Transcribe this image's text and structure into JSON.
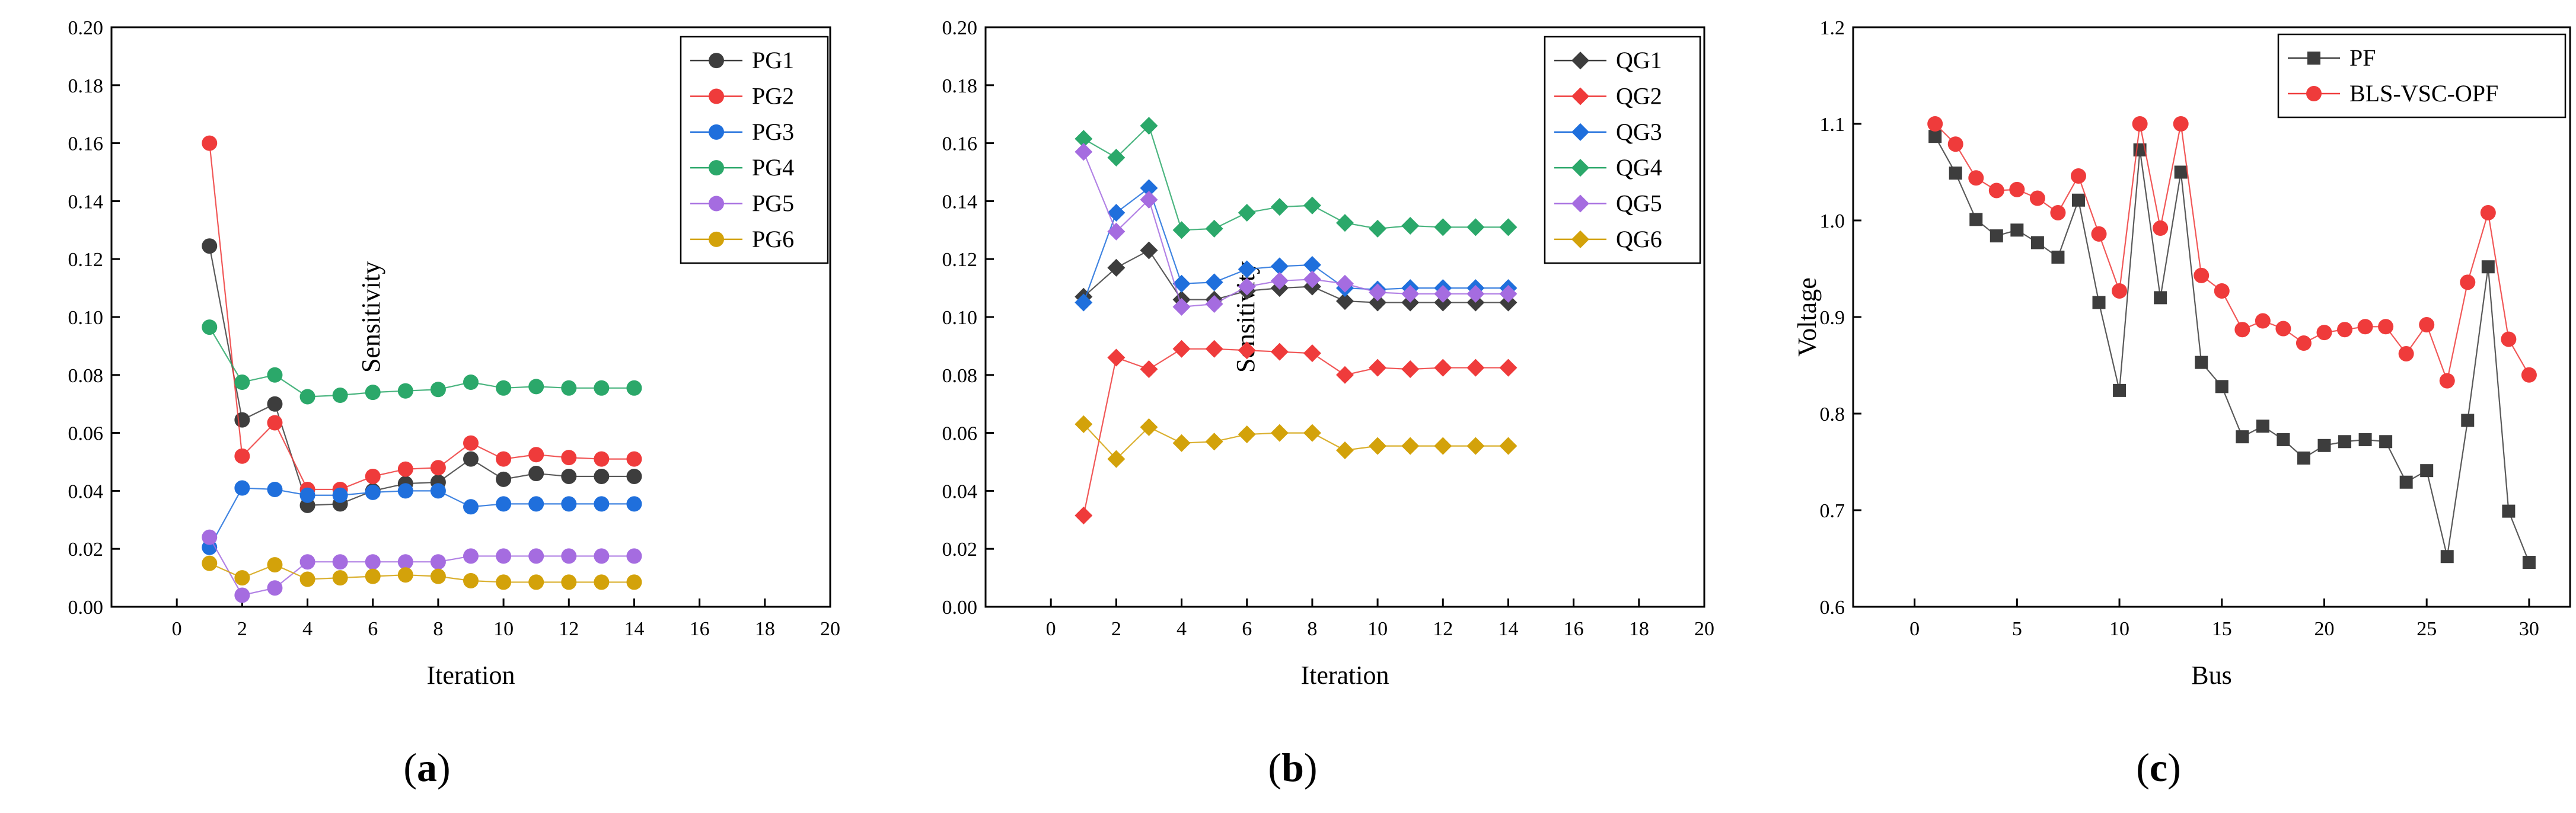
{
  "figure": {
    "panels": [
      "a",
      "b",
      "c"
    ]
  },
  "colors": {
    "PG1": "#3d3d3d",
    "PG2": "#ef3b3b",
    "PG3": "#1f6fdc",
    "PG4": "#2ba86a",
    "PG5": "#a56ce0",
    "PG6": "#d3a20a",
    "PF": "#3d3d3d",
    "BLS": "#ef3b3b"
  },
  "chart_data": [
    {
      "type": "line",
      "panel_label": "a",
      "xlabel": "Iteration",
      "ylabel": "Sensitivity",
      "xlim": [
        -2,
        20
      ],
      "ylim": [
        0,
        0.2
      ],
      "xticks": [
        "0",
        "2",
        "4",
        "6",
        "8",
        "10",
        "12",
        "14",
        "16",
        "18",
        "20"
      ],
      "yticks": [
        "0.00",
        "0.02",
        "0.04",
        "0.06",
        "0.08",
        "0.10",
        "0.12",
        "0.14",
        "0.16",
        "0.18",
        "0.20"
      ],
      "marker": "circle",
      "legend_position": "top-right",
      "x": [
        1,
        2,
        3,
        4,
        5,
        6,
        7,
        8,
        9,
        10,
        11,
        12,
        13,
        14
      ],
      "series": [
        {
          "name": "PG1",
          "color_key": "PG1",
          "values": [
            0.1245,
            0.0645,
            0.07,
            0.035,
            0.0355,
            0.04,
            0.0425,
            0.043,
            0.051,
            0.044,
            0.046,
            0.045,
            0.045,
            0.045
          ]
        },
        {
          "name": "PG2",
          "color_key": "PG2",
          "values": [
            0.16,
            0.052,
            0.0635,
            0.0405,
            0.0405,
            0.045,
            0.0475,
            0.048,
            0.0565,
            0.051,
            0.0525,
            0.0515,
            0.051,
            0.051
          ]
        },
        {
          "name": "PG3",
          "color_key": "PG3",
          "values": [
            0.0205,
            0.041,
            0.0405,
            0.0385,
            0.0385,
            0.0395,
            0.04,
            0.04,
            0.0345,
            0.0355,
            0.0355,
            0.0355,
            0.0355,
            0.0355
          ]
        },
        {
          "name": "PG4",
          "color_key": "PG4",
          "values": [
            0.0965,
            0.0775,
            0.08,
            0.0725,
            0.073,
            0.074,
            0.0745,
            0.075,
            0.0775,
            0.0755,
            0.076,
            0.0755,
            0.0755,
            0.0755
          ]
        },
        {
          "name": "PG5",
          "color_key": "PG5",
          "values": [
            0.024,
            0.004,
            0.0065,
            0.0155,
            0.0155,
            0.0155,
            0.0155,
            0.0155,
            0.0175,
            0.0175,
            0.0175,
            0.0175,
            0.0175,
            0.0175
          ]
        },
        {
          "name": "PG6",
          "color_key": "PG6",
          "values": [
            0.015,
            0.01,
            0.0145,
            0.0095,
            0.01,
            0.0105,
            0.011,
            0.0105,
            0.009,
            0.0085,
            0.0085,
            0.0085,
            0.0085,
            0.0085
          ]
        }
      ]
    },
    {
      "type": "line",
      "panel_label": "b",
      "xlabel": "Iteration",
      "ylabel": "Sensitivity",
      "xlim": [
        -2,
        20
      ],
      "ylim": [
        0,
        0.2
      ],
      "xticks": [
        "0",
        "2",
        "4",
        "6",
        "8",
        "10",
        "12",
        "14",
        "16",
        "18",
        "20"
      ],
      "yticks": [
        "0.00",
        "0.02",
        "0.04",
        "0.06",
        "0.08",
        "0.10",
        "0.12",
        "0.14",
        "0.16",
        "0.18",
        "0.20"
      ],
      "marker": "diamond",
      "legend_position": "top-right",
      "x": [
        1,
        2,
        3,
        4,
        5,
        6,
        7,
        8,
        9,
        10,
        11,
        12,
        13,
        14
      ],
      "series": [
        {
          "name": "QG1",
          "color_key": "PG1",
          "values": [
            0.107,
            0.117,
            0.123,
            0.106,
            0.106,
            0.109,
            0.11,
            0.1105,
            0.1055,
            0.105,
            0.105,
            0.105,
            0.105,
            0.105
          ]
        },
        {
          "name": "QG2",
          "color_key": "PG2",
          "values": [
            0.0315,
            0.086,
            0.082,
            0.089,
            0.089,
            0.0885,
            0.088,
            0.0875,
            0.08,
            0.0825,
            0.082,
            0.0825,
            0.0825,
            0.0825
          ]
        },
        {
          "name": "QG3",
          "color_key": "PG3",
          "values": [
            0.105,
            0.136,
            0.1445,
            0.1115,
            0.112,
            0.1165,
            0.1175,
            0.118,
            0.11,
            0.1095,
            0.11,
            0.11,
            0.11,
            0.11
          ]
        },
        {
          "name": "QG4",
          "color_key": "PG4",
          "values": [
            0.1615,
            0.155,
            0.166,
            0.13,
            0.1305,
            0.136,
            0.138,
            0.1385,
            0.1325,
            0.1305,
            0.1315,
            0.131,
            0.131,
            0.131
          ]
        },
        {
          "name": "QG5",
          "color_key": "PG5",
          "values": [
            0.157,
            0.1295,
            0.1405,
            0.1035,
            0.1045,
            0.1105,
            0.1125,
            0.113,
            0.1115,
            0.1085,
            0.108,
            0.108,
            0.108,
            0.108
          ]
        },
        {
          "name": "QG6",
          "color_key": "PG6",
          "values": [
            0.063,
            0.051,
            0.062,
            0.0565,
            0.057,
            0.0595,
            0.06,
            0.06,
            0.054,
            0.0555,
            0.0555,
            0.0555,
            0.0555,
            0.0555
          ]
        }
      ]
    },
    {
      "type": "line",
      "panel_label": "c",
      "xlabel": "Bus",
      "ylabel": "Voltage",
      "xlim": [
        -3,
        32
      ],
      "ylim": [
        0.6,
        1.2
      ],
      "xticks": [
        "0",
        "5",
        "10",
        "15",
        "20",
        "25",
        "30"
      ],
      "yticks": [
        "0.6",
        "0.7",
        "0.8",
        "0.9",
        "1.0",
        "1.1",
        "1.2"
      ],
      "legend_position": "top-right",
      "x": [
        1,
        2,
        3,
        4,
        5,
        6,
        7,
        8,
        9,
        10,
        11,
        12,
        13,
        14,
        15,
        16,
        17,
        18,
        19,
        20,
        21,
        22,
        23,
        24,
        25,
        26,
        27,
        28,
        29,
        30
      ],
      "series": [
        {
          "name": "PF",
          "color_key": "PF",
          "marker": "square",
          "values": [
            1.087,
            1.049,
            1.001,
            0.984,
            0.99,
            0.977,
            0.962,
            1.021,
            0.915,
            0.824,
            1.073,
            0.92,
            1.05,
            0.853,
            0.828,
            0.776,
            0.787,
            0.773,
            0.754,
            0.767,
            0.771,
            0.773,
            0.771,
            0.729,
            0.741,
            0.652,
            0.793,
            0.952,
            0.699,
            0.646
          ]
        },
        {
          "name": "BLS-VSC-OPF",
          "color_key": "BLS",
          "marker": "circle",
          "values": [
            1.1,
            1.079,
            1.044,
            1.031,
            1.032,
            1.023,
            1.008,
            1.046,
            0.986,
            0.927,
            1.1,
            0.992,
            1.1,
            0.943,
            0.927,
            0.887,
            0.896,
            0.888,
            0.873,
            0.884,
            0.887,
            0.89,
            0.89,
            0.862,
            0.892,
            0.834,
            0.936,
            1.008,
            0.877,
            0.84
          ]
        }
      ]
    }
  ]
}
